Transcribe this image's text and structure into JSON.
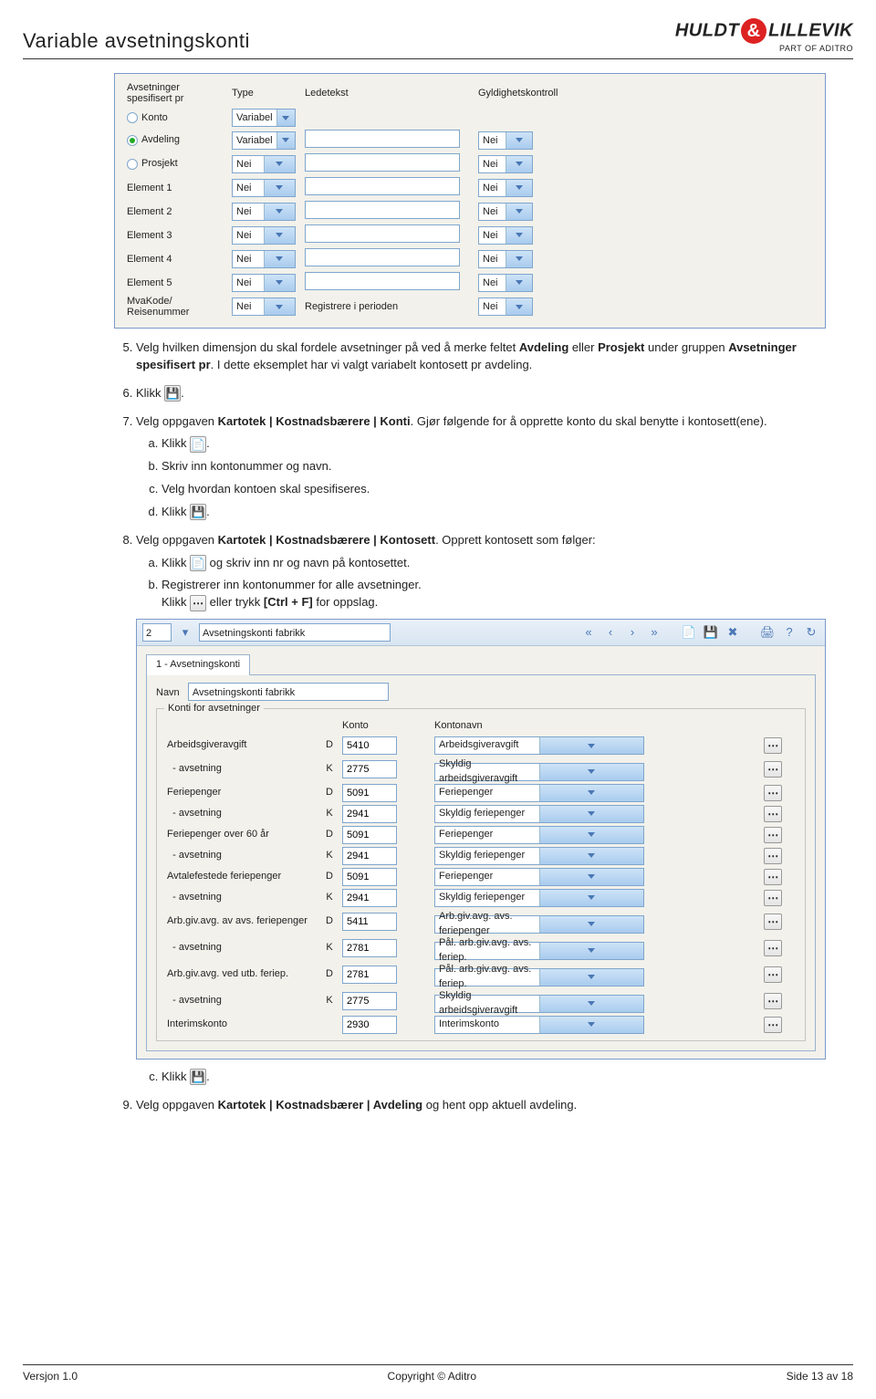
{
  "header": {
    "title": "Variable avsetningskonti",
    "brand1": "HULDT",
    "brand2": "LILLEVIK",
    "brand_sub": "PART OF ADITRO"
  },
  "shot1": {
    "group_label": "Avsetninger spesifisert pr",
    "col_type": "Type",
    "col_ledetekst": "Ledetekst",
    "col_gyld": "Gyldighetskontroll",
    "radios": [
      "Konto",
      "Avdeling",
      "Prosjekt"
    ],
    "rows": [
      {
        "lbl": "",
        "type": "Variabel",
        "gyld": ""
      },
      {
        "lbl": "",
        "type": "Variabel",
        "gyld": "Nei"
      },
      {
        "lbl": "",
        "type": "Nei",
        "gyld": "Nei"
      },
      {
        "lbl": "Element 1",
        "type": "Nei",
        "gyld": "Nei"
      },
      {
        "lbl": "Element 2",
        "type": "Nei",
        "gyld": "Nei"
      },
      {
        "lbl": "Element 3",
        "type": "Nei",
        "gyld": "Nei"
      },
      {
        "lbl": "Element 4",
        "type": "Nei",
        "gyld": "Nei"
      },
      {
        "lbl": "Element 5",
        "type": "Nei",
        "gyld": "Nei"
      },
      {
        "lbl": "MvaKode/\nReisenummer",
        "type": "Nei",
        "mid": "Registrere i perioden",
        "gyld": "Nei"
      }
    ]
  },
  "steps": {
    "s5a": "Velg hvilken dimensjon du skal fordele avsetninger på ved å merke feltet ",
    "s5b1": "Avdeling",
    "s5mid": " eller ",
    "s5b2": "Prosjekt",
    "s5c": " under gruppen ",
    "s5b3": "Avsetninger spesifisert pr",
    "s5d": ". I dette eksemplet har vi valgt variabelt kontosett pr avdeling.",
    "s6": "Klikk ",
    "s7a": "Velg oppgaven ",
    "s7b": "Kartotek | Kostnadsbærere | Konti",
    "s7c": ". Gjør følgende for å opprette konto du skal benytte i kontosett(ene).",
    "s7_a": "Klikk ",
    "s7_b": "Skriv inn kontonummer og navn.",
    "s7_c": "Velg hvordan kontoen skal spesifiseres.",
    "s7_d": "Klikk ",
    "s8a": "Velg oppgaven ",
    "s8b": "Kartotek | Kostnadsbærere | Kontosett",
    "s8c": ". Opprett kontosett som følger:",
    "s8_a1": "Klikk ",
    "s8_a2": " og skriv inn nr og navn på kontosettet.",
    "s8_b1": "Registrerer inn kontonummer for alle avsetninger.",
    "s8_b2": "Klikk ",
    "s8_b3": " eller trykk ",
    "s8_b4": "[Ctrl + F]",
    "s8_b5": " for oppslag.",
    "s8_c": "Klikk ",
    "s9a": "Velg oppgaven ",
    "s9b": "Kartotek | Kostnadsbærer | Avdeling",
    "s9c": " og hent opp aktuell avdeling."
  },
  "shot2": {
    "num": "2",
    "name": "Avsetningskonti fabrikk",
    "tab": "1 - Avsetningskonti",
    "navn_lbl": "Navn",
    "navn_val": "Avsetningskonti fabrikk",
    "fs_title": "Konti for avsetninger",
    "col_konto": "Konto",
    "col_kontonavn": "Kontonavn",
    "rows": [
      {
        "lab": "Arbeidsgiveravgift",
        "dk": "D",
        "konto": "5410",
        "navn": "Arbeidsgiveravgift"
      },
      {
        "lab": "  - avsetning",
        "dk": "K",
        "konto": "2775",
        "navn": "Skyldig arbeidsgiveravgift"
      },
      {
        "lab": "Feriepenger",
        "dk": "D",
        "konto": "5091",
        "navn": "Feriepenger"
      },
      {
        "lab": "  - avsetning",
        "dk": "K",
        "konto": "2941",
        "navn": "Skyldig feriepenger"
      },
      {
        "lab": "Feriepenger over 60 år",
        "dk": "D",
        "konto": "5091",
        "navn": "Feriepenger"
      },
      {
        "lab": "  - avsetning",
        "dk": "K",
        "konto": "2941",
        "navn": "Skyldig feriepenger"
      },
      {
        "lab": "Avtalefestede feriepenger",
        "dk": "D",
        "konto": "5091",
        "navn": "Feriepenger"
      },
      {
        "lab": "  - avsetning",
        "dk": "K",
        "konto": "2941",
        "navn": "Skyldig feriepenger"
      },
      {
        "lab": "Arb.giv.avg. av avs. feriepenger",
        "dk": "D",
        "konto": "5411",
        "navn": "Arb.giv.avg. avs. feriepenger"
      },
      {
        "lab": "  - avsetning",
        "dk": "K",
        "konto": "2781",
        "navn": "Pål. arb.giv.avg. avs. feriep."
      },
      {
        "lab": "Arb.giv.avg. ved utb. feriep.",
        "dk": "D",
        "konto": "2781",
        "navn": "Pål. arb.giv.avg. avs. feriep."
      },
      {
        "lab": "  - avsetning",
        "dk": "K",
        "konto": "2775",
        "navn": "Skyldig arbeidsgiveravgift"
      },
      {
        "lab": "Interimskonto",
        "dk": "",
        "konto": "2930",
        "navn": "Interimskonto"
      }
    ]
  },
  "footer": {
    "left": "Versjon 1.0",
    "center": "Copyright ©  Aditro",
    "right": "Side 13 av 18"
  }
}
